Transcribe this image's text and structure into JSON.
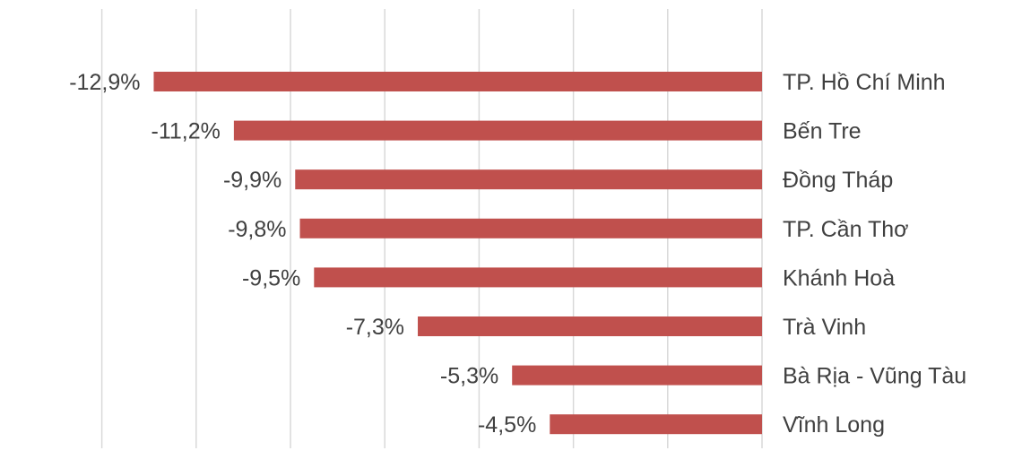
{
  "chart_data": {
    "type": "bar",
    "orientation": "horizontal",
    "categories": [
      "TP. Hồ Chí Minh",
      "Bến Tre",
      "Đồng Tháp",
      "TP. Cần Thơ",
      "Khánh Hoà",
      "Trà Vinh",
      "Bà Rịa - Vũng Tàu",
      "Vĩnh Long"
    ],
    "values": [
      -12.9,
      -11.2,
      -9.9,
      -9.8,
      -9.5,
      -7.3,
      -5.3,
      -4.5
    ],
    "value_labels": [
      "-12,9%",
      "-11,2%",
      "-9,9%",
      "-9,8%",
      "-9,5%",
      "-7,3%",
      "-5,3%",
      "-4,5%"
    ],
    "xlim": [
      -14,
      0
    ],
    "grid_step": 2,
    "grid": true,
    "legend": "none",
    "bar_color": "#c0504d",
    "grid_color": "#d9d9d9",
    "text_color": "#404040"
  }
}
